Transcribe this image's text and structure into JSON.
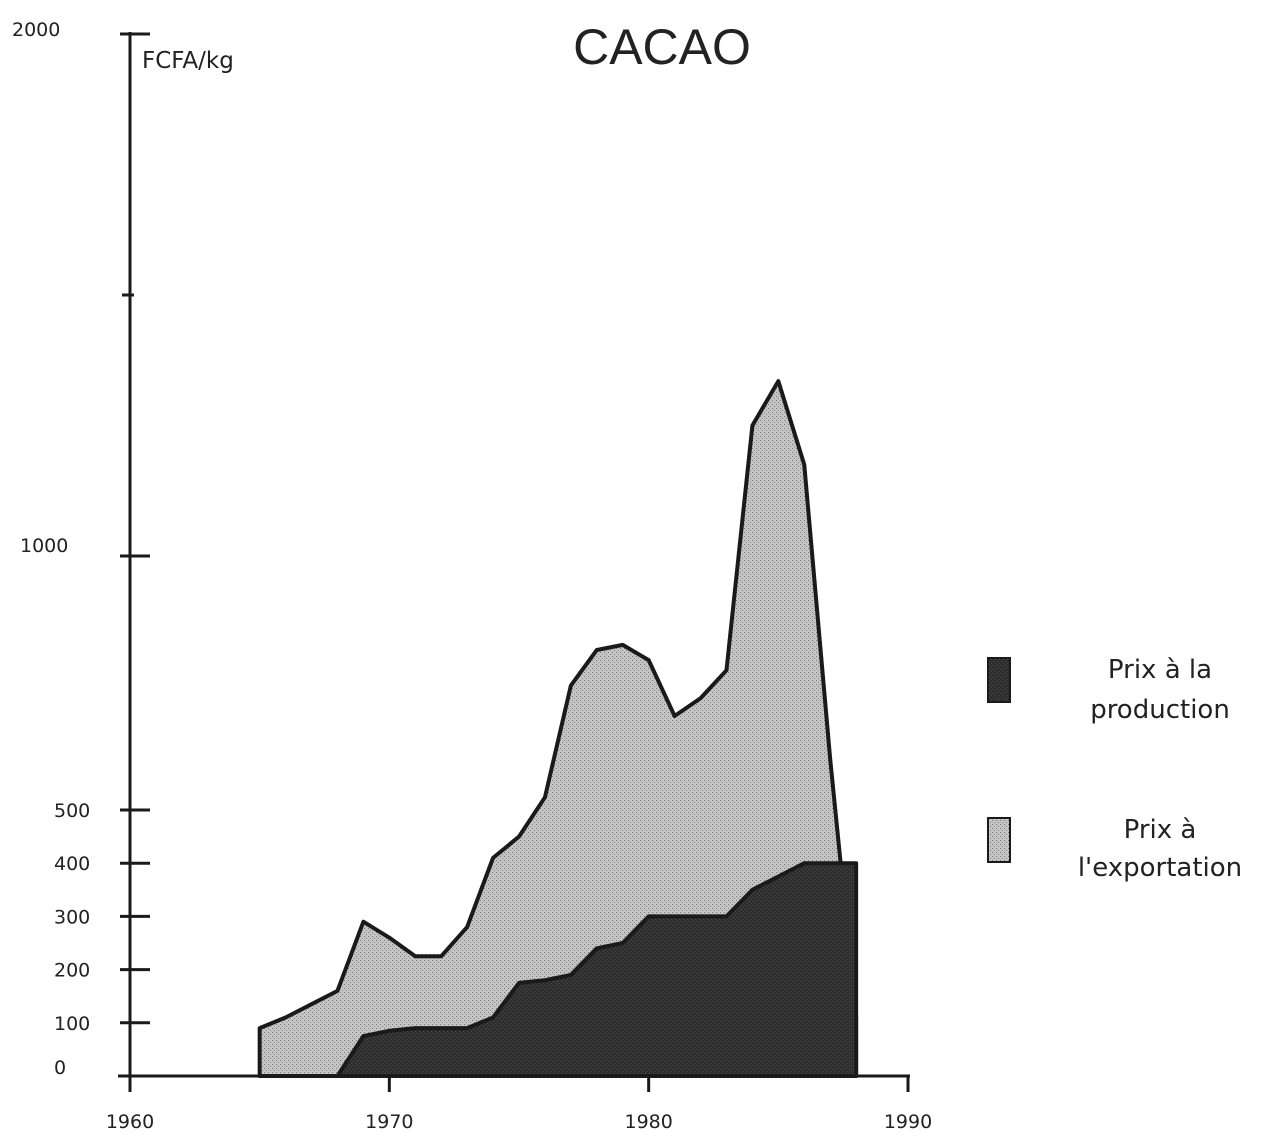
{
  "chart_data": {
    "type": "area",
    "title": "CACAO",
    "ylabel": "FCFA/kg",
    "xlabel": "",
    "x_ticks": [
      "1960",
      "1970",
      "1980",
      "1990"
    ],
    "x_tick_values": [
      1960,
      1970,
      1980,
      1990
    ],
    "y_ticks_labeled": [
      {
        "value": 0,
        "label": "0"
      },
      {
        "value": 100,
        "label": "100"
      },
      {
        "value": 200,
        "label": "200"
      },
      {
        "value": 300,
        "label": "300"
      },
      {
        "value": 400,
        "label": "400"
      },
      {
        "value": 500,
        "label": "500"
      },
      {
        "value": 1000,
        "label": "1000"
      },
      {
        "value": 2000,
        "label": "2000"
      }
    ],
    "y_ticks_unlabeled": [
      1500
    ],
    "xlim": [
      1960,
      1990
    ],
    "ylim": [
      0,
      2000
    ],
    "y_scale": "piecewise-linear (0-500 expanded, 500-2000 compressed)",
    "grid": false,
    "legend_position": "right",
    "colors": {
      "production_fill": "#2b2b2b",
      "export_fill": "#b4b4b4",
      "outline": "#1a1a1a"
    },
    "series": [
      {
        "name": "Prix à l'exportation",
        "fill": "light-dotted",
        "x": [
          1965,
          1966,
          1967,
          1968,
          1969,
          1970,
          1971,
          1972,
          1973,
          1974,
          1975,
          1976,
          1977,
          1978,
          1979,
          1980,
          1981,
          1982,
          1983,
          1984,
          1985,
          1986,
          1987,
          1988
        ],
        "y": [
          90,
          110,
          135,
          160,
          290,
          260,
          225,
          225,
          280,
          410,
          450,
          525,
          745,
          815,
          825,
          795,
          685,
          720,
          775,
          1250,
          1335,
          1175,
          600,
          110
        ]
      },
      {
        "name": "Prix à la production",
        "fill": "dark-dotted",
        "x": [
          1965,
          1968,
          1969,
          1970,
          1971,
          1973,
          1974,
          1975,
          1976,
          1977,
          1978,
          1979,
          1980,
          1983,
          1984,
          1985,
          1986,
          1987,
          1988
        ],
        "y": [
          0,
          0,
          75,
          85,
          90,
          90,
          110,
          175,
          180,
          190,
          240,
          250,
          300,
          300,
          350,
          375,
          400,
          400,
          400
        ]
      }
    ]
  },
  "legend": {
    "production_line1": "Prix à la",
    "production_line2": "production",
    "export_line1": "Prix à",
    "export_line2": "l'exportation"
  }
}
